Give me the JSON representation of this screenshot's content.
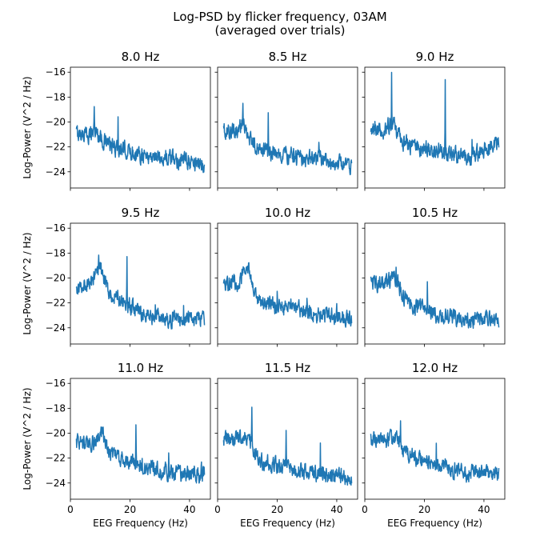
{
  "figure": {
    "title_line1": "Log-PSD by flicker frequency, 03AM",
    "title_line2": "(averaged over trials)"
  },
  "chart_data": {
    "type": "line",
    "layout": "3x3 small multiples, shared x and y axes",
    "grid": false,
    "xlabel": "EEG Frequency (Hz)",
    "ylabel": "Log-Power (V^2 / Hz)",
    "xlim": [
      0,
      47
    ],
    "ylim": [
      -25.3,
      -15.6
    ],
    "xticks": [
      0,
      20,
      40
    ],
    "yticks": [
      -16,
      -18,
      -20,
      -22,
      -24
    ],
    "color": "#1f77b4",
    "freq_range": [
      2,
      45
    ],
    "panels": [
      {
        "title": "8.0 Hz",
        "stim": 8.0,
        "baseline": [
          [
            2,
            -20.9
          ],
          [
            8,
            -21.1
          ],
          [
            15,
            -22.1
          ],
          [
            25,
            -22.7
          ],
          [
            35,
            -23.0
          ],
          [
            45,
            -23.4
          ]
        ],
        "bumps": [
          {
            "f": 8.5,
            "w": 1.2,
            "h": 0.4
          }
        ],
        "peaks": [
          {
            "f": 8,
            "h": 2.2
          },
          {
            "f": 16,
            "h": 3.0
          },
          {
            "f": 24,
            "h": 1.0
          },
          {
            "f": 32,
            "h": 0.7
          }
        ]
      },
      {
        "title": "8.5 Hz",
        "stim": 8.5,
        "baseline": [
          [
            2,
            -20.8
          ],
          [
            8,
            -20.9
          ],
          [
            15,
            -22.3
          ],
          [
            25,
            -22.8
          ],
          [
            35,
            -23.1
          ],
          [
            45,
            -23.5
          ]
        ],
        "bumps": [
          {
            "f": 8.8,
            "w": 1.2,
            "h": 0.9
          }
        ],
        "peaks": [
          {
            "f": 8.5,
            "h": 1.0
          },
          {
            "f": 17,
            "h": 2.8
          },
          {
            "f": 25.5,
            "h": 1.0
          },
          {
            "f": 34,
            "h": 0.7
          }
        ]
      },
      {
        "title": "9.0 Hz",
        "stim": 9.0,
        "baseline": [
          [
            2,
            -20.5
          ],
          [
            8,
            -20.7
          ],
          [
            15,
            -22.0
          ],
          [
            25,
            -22.3
          ],
          [
            35,
            -22.9
          ],
          [
            45,
            -21.6
          ]
        ],
        "bumps": [
          {
            "f": 9.5,
            "w": 1.2,
            "h": 0.8
          }
        ],
        "peaks": [
          {
            "f": 9,
            "h": 3.8
          },
          {
            "f": 18,
            "h": 0.6
          },
          {
            "f": 27,
            "h": 5.4
          },
          {
            "f": 36,
            "h": 1.8
          }
        ]
      },
      {
        "title": "9.5 Hz",
        "stim": 9.5,
        "baseline": [
          [
            2,
            -20.7
          ],
          [
            8,
            -20.5
          ],
          [
            15,
            -21.5
          ],
          [
            25,
            -23.0
          ],
          [
            35,
            -23.3
          ],
          [
            45,
            -23.3
          ]
        ],
        "bumps": [
          {
            "f": 10,
            "w": 1.3,
            "h": 1.5
          }
        ],
        "peaks": [
          {
            "f": 9.5,
            "h": 0.8
          },
          {
            "f": 19,
            "h": 3.8
          },
          {
            "f": 28.5,
            "h": 0.6
          },
          {
            "f": 38,
            "h": 0.9
          }
        ]
      },
      {
        "title": "10.0 Hz",
        "stim": 10.0,
        "baseline": [
          [
            2,
            -20.3
          ],
          [
            8,
            -20.4
          ],
          [
            15,
            -22.1
          ],
          [
            25,
            -22.3
          ],
          [
            35,
            -23.0
          ],
          [
            45,
            -23.3
          ]
        ],
        "bumps": [
          {
            "f": 10,
            "w": 1.2,
            "h": 1.7
          }
        ],
        "peaks": [
          {
            "f": 10,
            "h": 0.6
          },
          {
            "f": 20,
            "h": 1.5
          },
          {
            "f": 30,
            "h": 1.2
          },
          {
            "f": 40,
            "h": 0.8
          }
        ]
      },
      {
        "title": "10.5 Hz",
        "stim": 10.5,
        "baseline": [
          [
            2,
            -20.4
          ],
          [
            8,
            -20.3
          ],
          [
            15,
            -22.1
          ],
          [
            25,
            -23.0
          ],
          [
            35,
            -23.3
          ],
          [
            45,
            -23.3
          ]
        ],
        "bumps": [
          {
            "f": 10.5,
            "w": 1.2,
            "h": 0.8
          }
        ],
        "peaks": [
          {
            "f": 10.5,
            "h": 1.4
          },
          {
            "f": 21,
            "h": 2.0
          },
          {
            "f": 31.5,
            "h": 0.4
          },
          {
            "f": 42,
            "h": 0.5
          }
        ]
      },
      {
        "title": "11.0 Hz",
        "stim": 11.0,
        "baseline": [
          [
            2,
            -20.8
          ],
          [
            8,
            -20.9
          ],
          [
            15,
            -21.8
          ],
          [
            25,
            -22.6
          ],
          [
            35,
            -23.3
          ],
          [
            45,
            -23.4
          ]
        ],
        "bumps": [
          {
            "f": 10.5,
            "w": 1.3,
            "h": 1.2
          }
        ],
        "peaks": [
          {
            "f": 11,
            "h": 1.2
          },
          {
            "f": 22,
            "h": 3.0
          },
          {
            "f": 33,
            "h": 1.2
          },
          {
            "f": 44,
            "h": 1.3
          }
        ]
      },
      {
        "title": "11.5 Hz",
        "stim": 11.5,
        "baseline": [
          [
            2,
            -20.4
          ],
          [
            8,
            -20.6
          ],
          [
            15,
            -22.3
          ],
          [
            25,
            -22.8
          ],
          [
            35,
            -23.3
          ],
          [
            45,
            -23.6
          ]
        ],
        "bumps": [
          {
            "f": 10,
            "w": 1.2,
            "h": 0.9
          }
        ],
        "peaks": [
          {
            "f": 11.5,
            "h": 2.7
          },
          {
            "f": 23,
            "h": 2.6
          },
          {
            "f": 34.5,
            "h": 2.3
          }
        ]
      },
      {
        "title": "12.0 Hz",
        "stim": 12.0,
        "baseline": [
          [
            2,
            -20.5
          ],
          [
            8,
            -20.6
          ],
          [
            15,
            -21.8
          ],
          [
            25,
            -22.6
          ],
          [
            35,
            -23.2
          ],
          [
            45,
            -23.3
          ]
        ],
        "bumps": [
          {
            "f": 10.5,
            "w": 1.2,
            "h": 0.7
          }
        ],
        "peaks": [
          {
            "f": 12,
            "h": 1.7
          },
          {
            "f": 24,
            "h": 2.0
          },
          {
            "f": 36,
            "h": 1.0
          }
        ]
      }
    ]
  }
}
